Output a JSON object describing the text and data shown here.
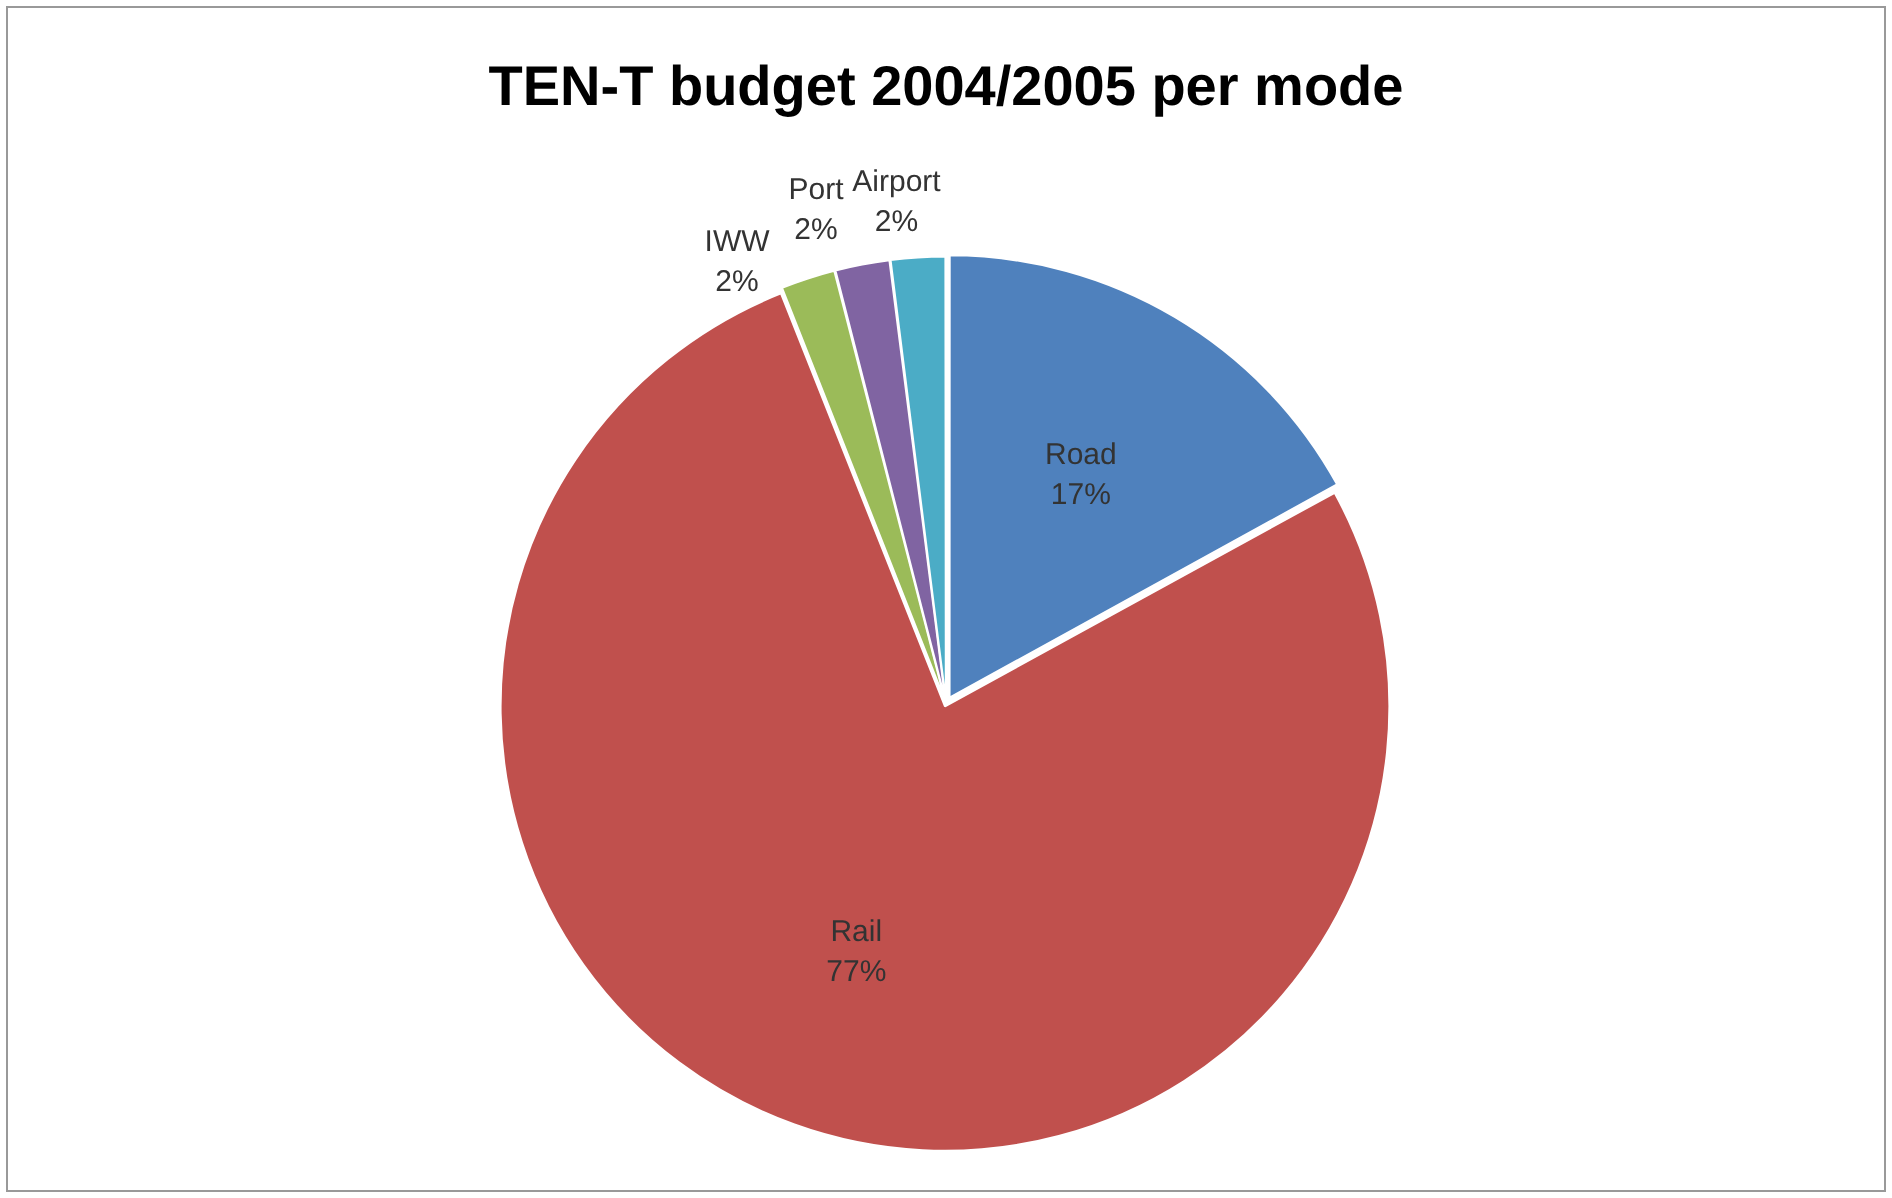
{
  "chart_data": {
    "type": "pie",
    "title": "TEN-T budget 2004/2005 per mode",
    "categories": [
      "Road",
      "Rail",
      "IWW",
      "Port",
      "Airport"
    ],
    "values": [
      17,
      77,
      2,
      2,
      2
    ],
    "colors": [
      "#4f81bd",
      "#c0504d",
      "#9bbb59",
      "#8064a2",
      "#4bacc6"
    ],
    "value_labels": [
      "17%",
      "77%",
      "2%",
      "2%",
      "2%"
    ],
    "legend": false
  }
}
